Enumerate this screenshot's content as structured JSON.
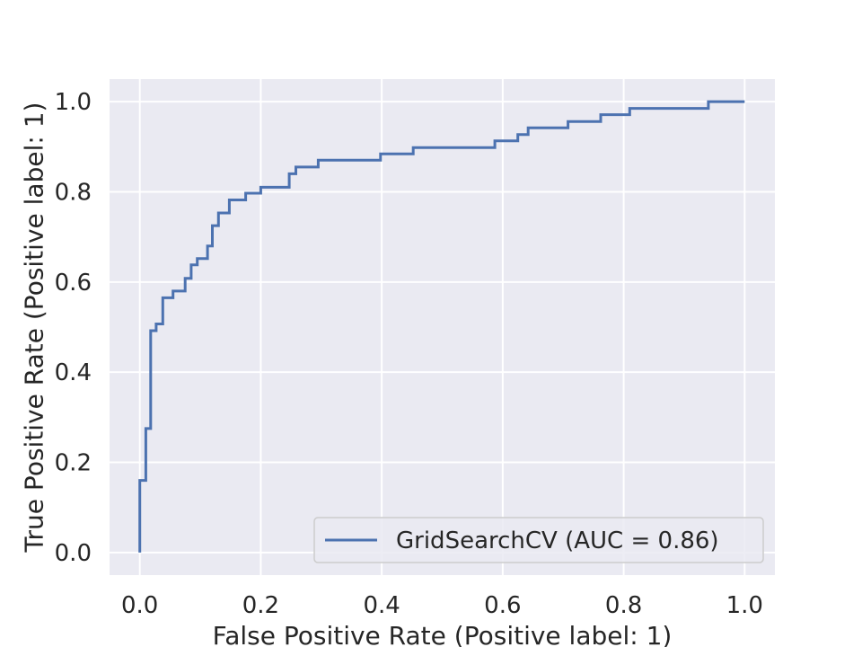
{
  "chart_data": {
    "type": "line",
    "title": "",
    "xlabel": "False Positive Rate (Positive label: 1)",
    "ylabel": "True Positive Rate (Positive label: 1)",
    "xlim": [
      -0.05,
      1.05
    ],
    "ylim": [
      -0.05,
      1.05
    ],
    "xticks": [
      0.0,
      0.2,
      0.4,
      0.6,
      0.8,
      1.0
    ],
    "xtick_labels": [
      "0.0",
      "0.2",
      "0.4",
      "0.6",
      "0.8",
      "1.0"
    ],
    "yticks": [
      0.0,
      0.2,
      0.4,
      0.6,
      0.8,
      1.0
    ],
    "ytick_labels": [
      "0.0",
      "0.2",
      "0.4",
      "0.6",
      "0.8",
      "1.0"
    ],
    "grid": true,
    "background": "#eaeaf2",
    "grid_color": "#ffffff",
    "legend_location": "lower-right",
    "series": [
      {
        "name": "GridSearchCV (AUC = 0.86)",
        "color": "#4c72b0",
        "drawstyle": "steps",
        "x": [
          0.0,
          0.0,
          0.01,
          0.01,
          0.018,
          0.018,
          0.027,
          0.027,
          0.038,
          0.038,
          0.055,
          0.055,
          0.075,
          0.075,
          0.085,
          0.085,
          0.095,
          0.095,
          0.112,
          0.112,
          0.12,
          0.12,
          0.13,
          0.13,
          0.148,
          0.148,
          0.175,
          0.175,
          0.2,
          0.2,
          0.247,
          0.247,
          0.258,
          0.258,
          0.295,
          0.295,
          0.398,
          0.398,
          0.452,
          0.452,
          0.587,
          0.587,
          0.625,
          0.625,
          0.642,
          0.642,
          0.708,
          0.708,
          0.762,
          0.762,
          0.81,
          0.81,
          0.94,
          0.94,
          1.0
        ],
        "y": [
          0.0,
          0.16,
          0.16,
          0.275,
          0.275,
          0.492,
          0.492,
          0.507,
          0.507,
          0.565,
          0.565,
          0.58,
          0.58,
          0.608,
          0.608,
          0.638,
          0.638,
          0.652,
          0.652,
          0.68,
          0.68,
          0.725,
          0.725,
          0.753,
          0.753,
          0.782,
          0.782,
          0.797,
          0.797,
          0.81,
          0.81,
          0.84,
          0.84,
          0.855,
          0.855,
          0.87,
          0.87,
          0.884,
          0.884,
          0.898,
          0.898,
          0.913,
          0.913,
          0.927,
          0.927,
          0.942,
          0.942,
          0.956,
          0.956,
          0.971,
          0.971,
          0.985,
          0.985,
          1.0,
          1.0
        ]
      }
    ]
  }
}
